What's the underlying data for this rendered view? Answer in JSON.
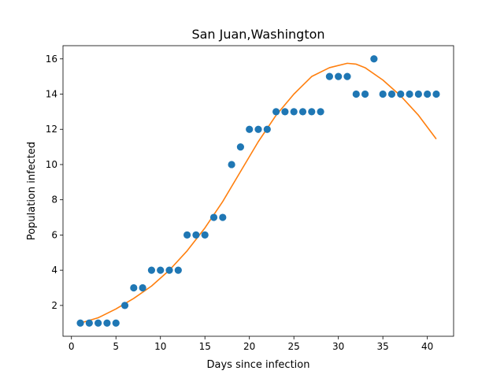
{
  "chart_data": {
    "type": "scatter",
    "title": "San Juan,Washington",
    "xlabel": "Days since infection",
    "ylabel": "Population infected",
    "xlim": [
      -0.95,
      42.95
    ],
    "ylim": [
      0.25,
      16.75
    ],
    "xticks": [
      0,
      5,
      10,
      15,
      20,
      25,
      30,
      35,
      40
    ],
    "yticks": [
      2,
      4,
      6,
      8,
      10,
      12,
      14,
      16
    ],
    "grid": false,
    "series": [
      {
        "type": "scatter",
        "color": "#1f77b4",
        "x": [
          1,
          2,
          3,
          4,
          5,
          6,
          7,
          8,
          9,
          10,
          11,
          12,
          13,
          14,
          15,
          16,
          17,
          18,
          19,
          20,
          21,
          22,
          23,
          24,
          25,
          26,
          27,
          28,
          29,
          30,
          31,
          32,
          33,
          34,
          35,
          36,
          37,
          38,
          39,
          40,
          41
        ],
        "y": [
          1,
          1,
          1,
          1,
          1,
          2,
          3,
          3,
          4,
          4,
          4,
          4,
          6,
          6,
          6,
          7,
          7,
          10,
          11,
          12,
          12,
          12,
          13,
          13,
          13,
          13,
          13,
          13,
          15,
          15,
          15,
          14,
          14,
          16,
          14,
          14,
          14,
          14,
          14,
          14,
          14
        ]
      },
      {
        "type": "line",
        "color": "#ff7f0e",
        "x": [
          1,
          3,
          5,
          7,
          9,
          11,
          13,
          15,
          17,
          19,
          21,
          23,
          25,
          27,
          29,
          31,
          32,
          33,
          35,
          37,
          39,
          41
        ],
        "y": [
          1.0,
          1.3,
          1.8,
          2.4,
          3.1,
          4.0,
          5.1,
          6.4,
          7.9,
          9.6,
          11.3,
          12.8,
          14.0,
          15.0,
          15.5,
          15.75,
          15.7,
          15.5,
          14.8,
          13.9,
          12.8,
          11.45
        ]
      }
    ]
  }
}
